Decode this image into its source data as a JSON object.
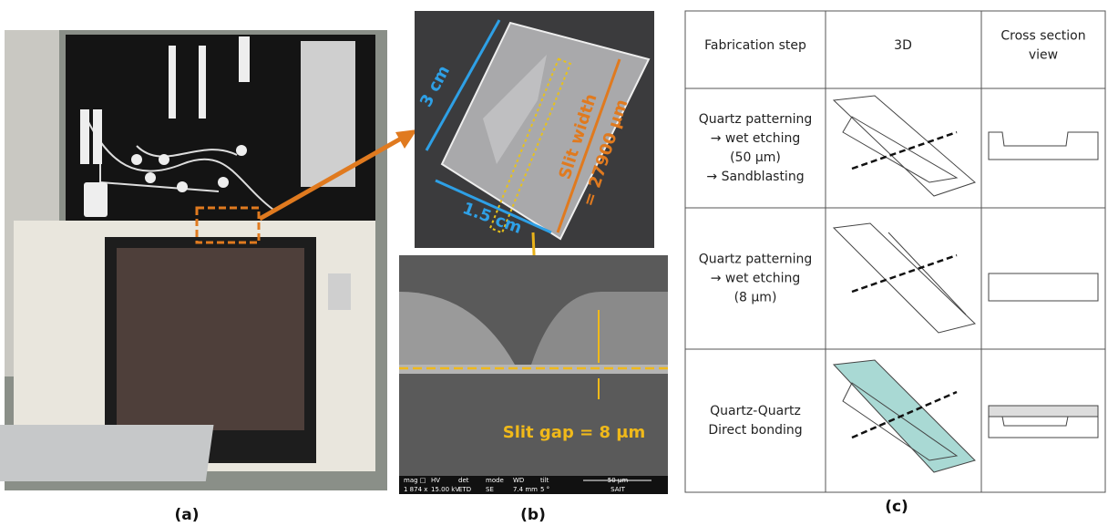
{
  "panels": {
    "a": {
      "label": "(a)"
    },
    "b": {
      "label": "(b)",
      "photo": {
        "height": "3 cm",
        "width": "1.5 cm",
        "slit_width": [
          "Slit width",
          "= 27900 μm"
        ]
      },
      "sem": {
        "annotation": "Slit gap = 8 μm",
        "info_bar": [
          "mag □",
          "HV",
          "det",
          "mode",
          "WD",
          "tilt",
          "1 874 x",
          "15.00 kV",
          "ETD",
          "SE",
          "7.4 mm",
          "5 °"
        ],
        "scale": "50 μm",
        "lab": "SAIT"
      }
    },
    "c": {
      "label": "(c)"
    }
  },
  "table": {
    "header": [
      [
        "Fabrication step"
      ],
      [
        "3D"
      ],
      [
        "Cross section",
        "view"
      ]
    ],
    "rows": [
      [
        "Quartz patterning",
        "→ wet etching",
        "(50 μm)",
        "→ Sandblasting"
      ],
      [
        "Quartz patterning",
        "→ wet etching",
        "(8 μm)"
      ],
      [
        "Quartz-Quartz",
        "Direct bonding"
      ]
    ]
  }
}
